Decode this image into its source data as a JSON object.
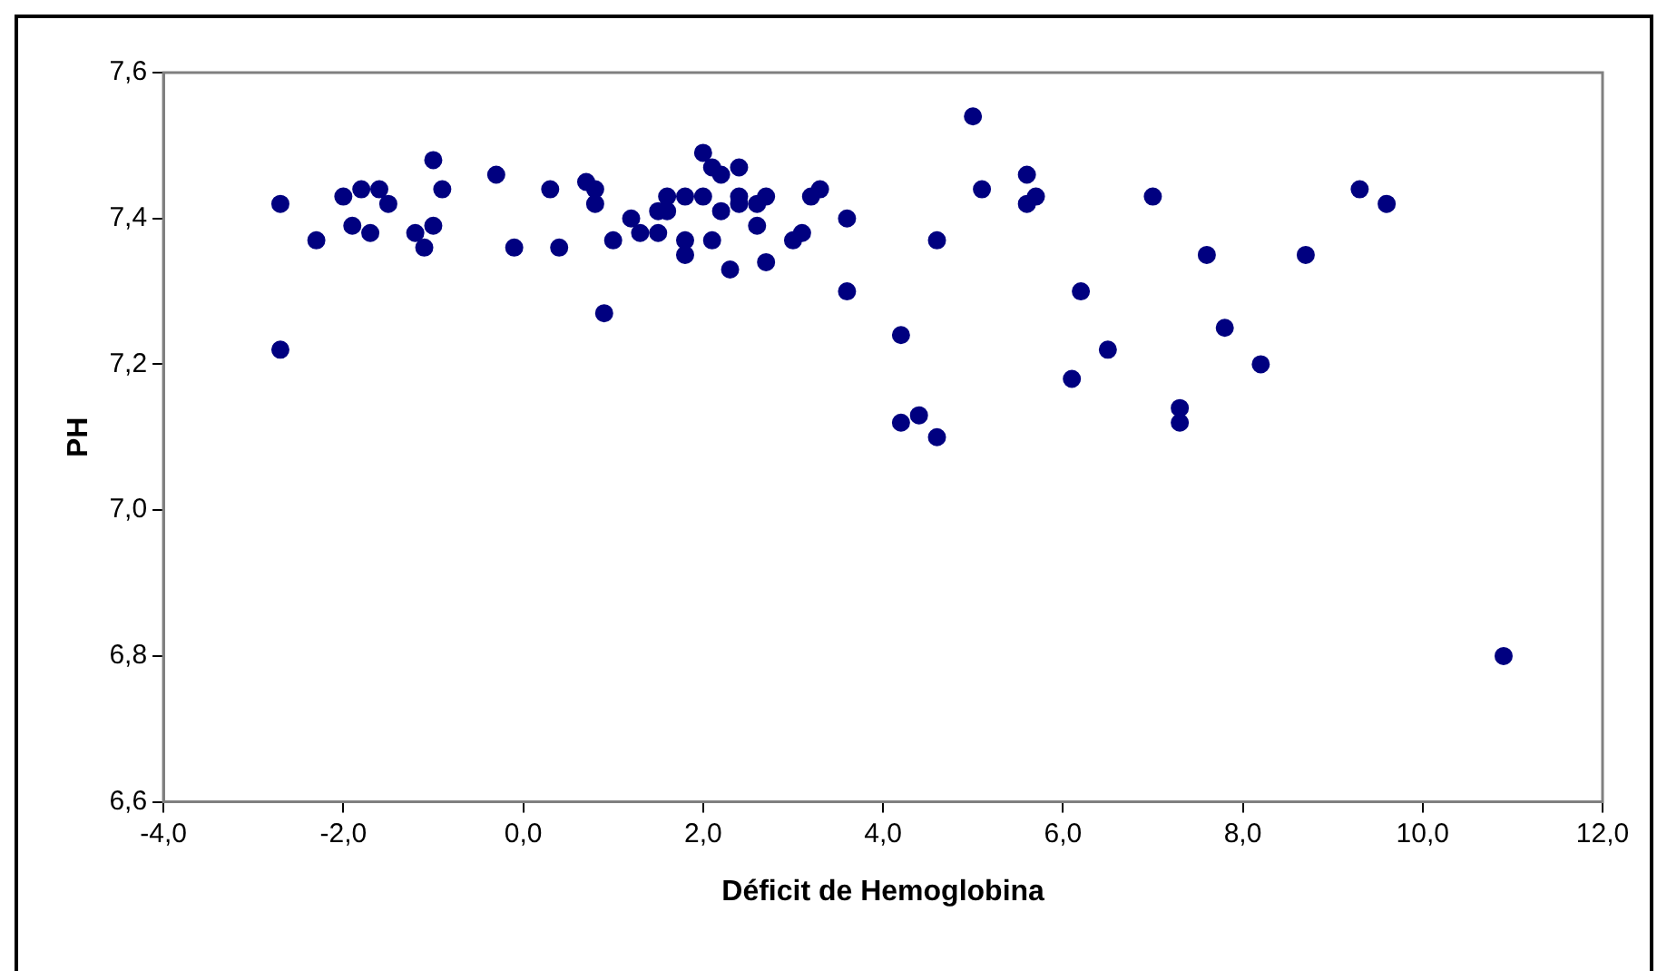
{
  "chart_data": {
    "type": "scatter",
    "xlabel": "Déficit de Hemoglobina",
    "ylabel": "PH",
    "marker": "circle",
    "legend": false,
    "xlim": [
      -4,
      12
    ],
    "ylim": [
      6.6,
      7.6
    ],
    "xticks": [
      {
        "value": -4,
        "label": "-4,0"
      },
      {
        "value": -2,
        "label": "-2,0"
      },
      {
        "value": 0,
        "label": "0,0"
      },
      {
        "value": 2,
        "label": "2,0"
      },
      {
        "value": 4,
        "label": "4,0"
      },
      {
        "value": 6,
        "label": "6,0"
      },
      {
        "value": 8,
        "label": "8,0"
      },
      {
        "value": 10,
        "label": "10,0"
      },
      {
        "value": 12,
        "label": "12,0"
      }
    ],
    "yticks": [
      {
        "value": 6.6,
        "label": "6,6"
      },
      {
        "value": 6.8,
        "label": "6,8"
      },
      {
        "value": 7.0,
        "label": "7,0"
      },
      {
        "value": 7.2,
        "label": "7,2"
      },
      {
        "value": 7.4,
        "label": "7,4"
      },
      {
        "value": 7.6,
        "label": "7,6"
      }
    ],
    "series": [
      {
        "color": "#000080",
        "x": [
          -2.7,
          -2.7,
          -2.3,
          -2.0,
          -1.9,
          -1.8,
          -1.7,
          -1.6,
          -1.5,
          -1.2,
          -1.1,
          -1.0,
          -1.0,
          -0.9,
          -0.3,
          -0.1,
          0.3,
          0.4,
          0.7,
          0.8,
          0.8,
          0.9,
          1.0,
          1.2,
          1.3,
          1.5,
          1.5,
          1.6,
          1.6,
          1.8,
          1.8,
          1.8,
          2.0,
          2.0,
          2.1,
          2.1,
          2.2,
          2.2,
          2.3,
          2.4,
          2.4,
          2.4,
          2.6,
          2.6,
          2.7,
          2.7,
          3.0,
          3.1,
          3.2,
          3.3,
          3.6,
          3.6,
          4.2,
          4.2,
          4.4,
          4.6,
          4.6,
          5.0,
          5.1,
          5.6,
          5.6,
          5.7,
          6.1,
          6.2,
          6.5,
          7.0,
          7.3,
          7.3,
          7.6,
          7.8,
          8.2,
          8.7,
          9.3,
          9.6,
          10.9
        ],
        "values": [
          7.42,
          7.22,
          7.37,
          7.43,
          7.39,
          7.44,
          7.38,
          7.44,
          7.42,
          7.38,
          7.36,
          7.48,
          7.39,
          7.44,
          7.46,
          7.36,
          7.44,
          7.36,
          7.45,
          7.42,
          7.44,
          7.27,
          7.37,
          7.4,
          7.38,
          7.38,
          7.41,
          7.43,
          7.41,
          7.43,
          7.35,
          7.37,
          7.49,
          7.43,
          7.47,
          7.37,
          7.46,
          7.41,
          7.33,
          7.47,
          7.43,
          7.42,
          7.42,
          7.39,
          7.34,
          7.43,
          7.37,
          7.38,
          7.43,
          7.44,
          7.3,
          7.4,
          7.24,
          7.12,
          7.13,
          7.37,
          7.1,
          7.54,
          7.44,
          7.46,
          7.42,
          7.43,
          7.18,
          7.3,
          7.22,
          7.43,
          7.14,
          7.12,
          7.35,
          7.25,
          7.2,
          7.35,
          7.44,
          7.42,
          6.8
        ]
      }
    ]
  }
}
